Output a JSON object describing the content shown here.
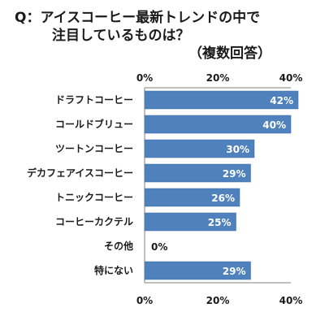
{
  "title": {
    "line1": "Q：アイスコーヒー最新トレンドの中で",
    "line2": "注目しているものは？",
    "line3": "（複数回答）"
  },
  "chart_data": {
    "type": "bar",
    "orientation": "horizontal",
    "categories": [
      "ドラフトコーヒー",
      "コールドブリュー",
      "ツートンコーヒー",
      "デカフェアイスコーヒー",
      "トニックコーヒー",
      "コーヒーカクテル",
      "その他",
      "特にない"
    ],
    "values": [
      42,
      40,
      30,
      29,
      26,
      25,
      0,
      29
    ],
    "value_labels": [
      "42%",
      "40%",
      "30%",
      "29%",
      "26%",
      "25%",
      "0%",
      "29%"
    ],
    "xlim": [
      0,
      40
    ],
    "ticks": [
      0,
      20,
      40
    ],
    "tick_labels": [
      "0%",
      "20%",
      "40%"
    ],
    "bar_color": "#4f81bd",
    "grid": false
  }
}
